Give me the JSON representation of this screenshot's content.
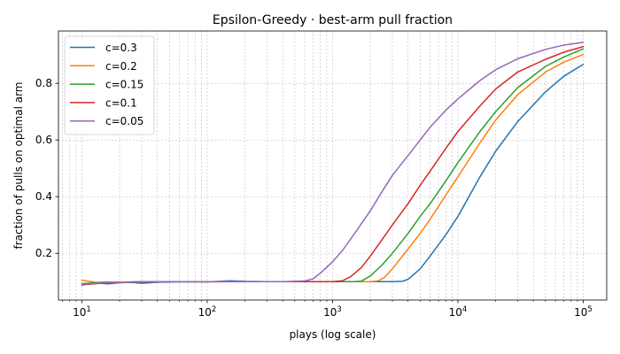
{
  "chart_data": {
    "type": "line",
    "title": "Epsilon-Greedy · best-arm pull fraction",
    "xlabel": "plays (log scale)",
    "ylabel": "fraction of pulls on optimal arm",
    "xscale": "log",
    "xlim": [
      6.5,
      154000
    ],
    "ylim": [
      0.035,
      0.985
    ],
    "x_ticks": [
      {
        "value": 10,
        "base": "10",
        "exp": "1"
      },
      {
        "value": 100,
        "base": "10",
        "exp": "2"
      },
      {
        "value": 1000,
        "base": "10",
        "exp": "3"
      },
      {
        "value": 10000,
        "base": "10",
        "exp": "4"
      },
      {
        "value": 100000,
        "base": "10",
        "exp": "5"
      }
    ],
    "y_ticks": [
      "0.2",
      "0.4",
      "0.6",
      "0.8"
    ],
    "grid": true,
    "legend_position": "top-left",
    "series": [
      {
        "name": "c=0.3",
        "color": "#1f77b4",
        "x": [
          10,
          13,
          16,
          20,
          25,
          30,
          40,
          60,
          100,
          150,
          200,
          300,
          500,
          1000,
          2000,
          3000,
          3600,
          4000,
          5000,
          6000,
          7000,
          8000,
          10000,
          15000,
          20000,
          30000,
          50000,
          70000,
          100000
        ],
        "y": [
          0.088,
          0.095,
          0.092,
          0.096,
          0.097,
          0.094,
          0.098,
          0.099,
          0.099,
          0.103,
          0.101,
          0.1,
          0.1,
          0.1,
          0.1,
          0.1,
          0.101,
          0.108,
          0.145,
          0.19,
          0.23,
          0.265,
          0.33,
          0.47,
          0.56,
          0.665,
          0.77,
          0.825,
          0.867
        ]
      },
      {
        "name": "c=0.2",
        "color": "#ff7f0e",
        "x": [
          10,
          13,
          16,
          20,
          30,
          50,
          100,
          200,
          500,
          1000,
          1500,
          2000,
          2300,
          2600,
          3000,
          4000,
          5000,
          6000,
          8000,
          10000,
          15000,
          20000,
          30000,
          50000,
          70000,
          100000
        ],
        "y": [
          0.105,
          0.097,
          0.099,
          0.096,
          0.1,
          0.1,
          0.099,
          0.1,
          0.1,
          0.1,
          0.1,
          0.1,
          0.102,
          0.115,
          0.145,
          0.215,
          0.27,
          0.32,
          0.405,
          0.47,
          0.59,
          0.67,
          0.76,
          0.84,
          0.875,
          0.902
        ]
      },
      {
        "name": "c=0.15",
        "color": "#2ca02c",
        "x": [
          10,
          13,
          16,
          20,
          30,
          50,
          100,
          200,
          500,
          1000,
          1500,
          1700,
          2000,
          2500,
          3000,
          4000,
          5000,
          6000,
          8000,
          10000,
          15000,
          20000,
          30000,
          50000,
          70000,
          100000
        ],
        "y": [
          0.093,
          0.096,
          0.097,
          0.098,
          0.099,
          0.1,
          0.1,
          0.1,
          0.1,
          0.1,
          0.1,
          0.102,
          0.12,
          0.16,
          0.2,
          0.27,
          0.33,
          0.375,
          0.455,
          0.52,
          0.63,
          0.7,
          0.785,
          0.86,
          0.893,
          0.922
        ]
      },
      {
        "name": "c=0.1",
        "color": "#d62728",
        "x": [
          10,
          13,
          16,
          20,
          30,
          50,
          100,
          200,
          500,
          1000,
          1200,
          1400,
          1700,
          2000,
          2500,
          3000,
          4000,
          5000,
          6000,
          8000,
          10000,
          15000,
          20000,
          30000,
          50000,
          70000,
          100000
        ],
        "y": [
          0.089,
          0.093,
          0.096,
          0.098,
          0.099,
          0.1,
          0.1,
          0.1,
          0.1,
          0.1,
          0.103,
          0.118,
          0.15,
          0.19,
          0.25,
          0.3,
          0.375,
          0.44,
          0.49,
          0.57,
          0.63,
          0.72,
          0.78,
          0.84,
          0.885,
          0.91,
          0.93
        ]
      },
      {
        "name": "c=0.05",
        "color": "#9467bd",
        "x": [
          10,
          13,
          16,
          20,
          30,
          50,
          100,
          200,
          400,
          600,
          700,
          800,
          1000,
          1200,
          1500,
          2000,
          2500,
          3000,
          4000,
          5000,
          6000,
          8000,
          10000,
          15000,
          20000,
          30000,
          50000,
          70000,
          100000
        ],
        "y": [
          0.091,
          0.094,
          0.096,
          0.098,
          0.1,
          0.1,
          0.1,
          0.1,
          0.1,
          0.102,
          0.11,
          0.13,
          0.17,
          0.21,
          0.27,
          0.35,
          0.42,
          0.475,
          0.545,
          0.6,
          0.645,
          0.705,
          0.745,
          0.81,
          0.848,
          0.887,
          0.92,
          0.935,
          0.945
        ]
      }
    ]
  }
}
